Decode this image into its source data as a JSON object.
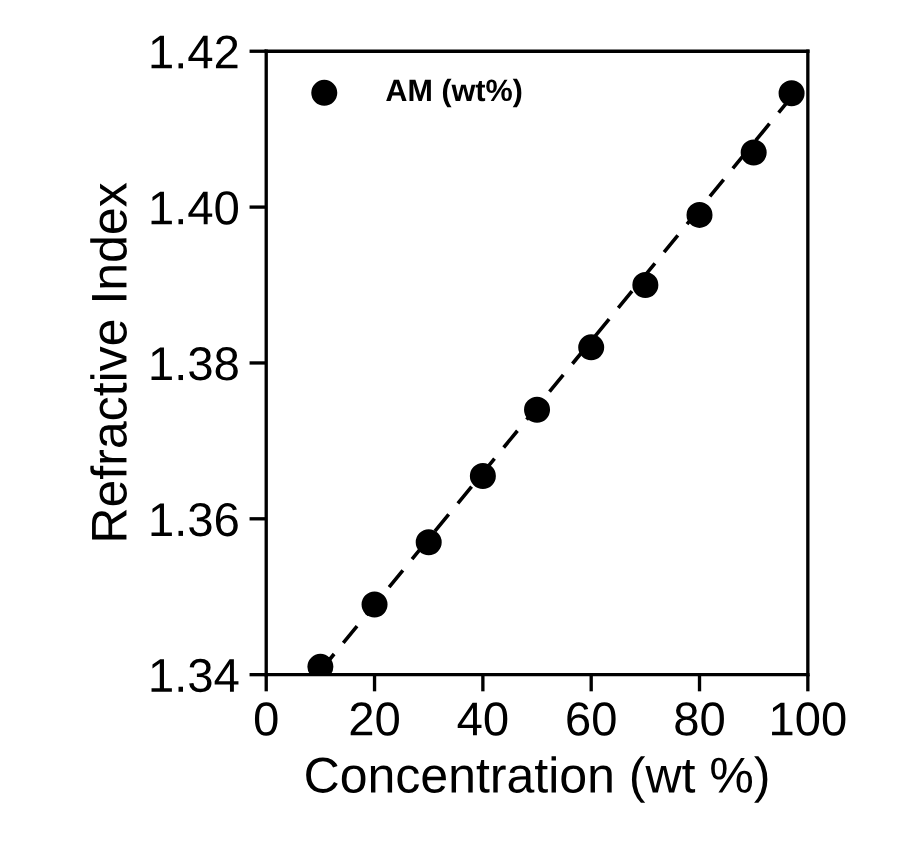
{
  "chart_data": {
    "type": "scatter",
    "xlabel": "Concentration (wt %)",
    "ylabel": "Refractive Index",
    "xlim": [
      0,
      100
    ],
    "xticks": [
      0,
      20,
      40,
      60,
      80,
      100
    ],
    "ylim": [
      1.34,
      1.42
    ],
    "yticks": [
      {
        "value": 1.34,
        "label": "1.34"
      },
      {
        "value": 1.36,
        "label": "1.36"
      },
      {
        "value": 1.38,
        "label": "1.38"
      },
      {
        "value": 1.4,
        "label": "1.40"
      },
      {
        "value": 1.42,
        "label": "1.42"
      }
    ],
    "grid": false,
    "legend": "top left",
    "marker": "circle",
    "series": [
      {
        "name": "AM (wt%)",
        "color": "#000000",
        "x": [
          10,
          20,
          30,
          40,
          50,
          60,
          70,
          80,
          90,
          97
        ],
        "values": [
          1.341,
          1.349,
          1.357,
          1.3655,
          1.374,
          1.382,
          1.39,
          1.399,
          1.407,
          1.4146
        ]
      },
      {
        "type": "line",
        "color": "#000000",
        "line_style": "dashed",
        "marker": "none",
        "x": [
          10,
          98
        ],
        "values": [
          1.3405,
          1.415
        ]
      }
    ]
  }
}
